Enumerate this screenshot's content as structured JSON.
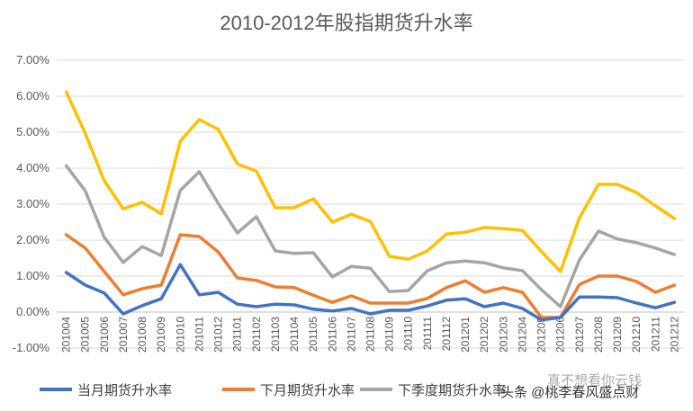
{
  "chart_data": {
    "type": "line",
    "title": "2010-2012年股指期货升水率",
    "xlabel": "",
    "ylabel": "",
    "ylim": [
      -0.01,
      0.07
    ],
    "yticks": [
      -0.01,
      0,
      0.01,
      0.02,
      0.03,
      0.04,
      0.05,
      0.06,
      0.07
    ],
    "ytick_labels": [
      "-1.00%",
      "0.00%",
      "1.00%",
      "2.00%",
      "3.00%",
      "4.00%",
      "5.00%",
      "6.00%",
      "7.00%"
    ],
    "grid": "horizontal",
    "legend_position": "bottom",
    "categories": [
      "201004",
      "201005",
      "201006",
      "201007",
      "201008",
      "201009",
      "201010",
      "201011",
      "201012",
      "201101",
      "201102",
      "201103",
      "201104",
      "201105",
      "201106",
      "201107",
      "201108",
      "201109",
      "201110",
      "201111",
      "201112",
      "201201",
      "201202",
      "201203",
      "201204",
      "201205",
      "201206",
      "201207",
      "201208",
      "201209",
      "201210",
      "201211",
      "201212"
    ],
    "series": [
      {
        "name": "当月期货升水率",
        "color": "#4472C4",
        "values": [
          0.011,
          0.0075,
          0.0053,
          -0.0005,
          0.0018,
          0.0037,
          0.0132,
          0.0048,
          0.0055,
          0.0022,
          0.0015,
          0.0022,
          0.002,
          0.0008,
          0.0003,
          0.001,
          -0.0005,
          0.0005,
          0.0005,
          0.0017,
          0.0033,
          0.0037,
          0.0015,
          0.0025,
          0.001,
          -0.0022,
          -0.0015,
          0.0042,
          0.0042,
          0.004,
          0.0025,
          0.0012,
          0.0027
        ]
      },
      {
        "name": "下月期货升水率",
        "color": "#ED7D31",
        "values": [
          0.0215,
          0.0178,
          0.0113,
          0.0048,
          0.0065,
          0.0075,
          0.0215,
          0.021,
          0.0167,
          0.0095,
          0.0088,
          0.007,
          0.0068,
          0.0047,
          0.0027,
          0.0045,
          0.0025,
          0.0025,
          0.0025,
          0.0038,
          0.0068,
          0.0087,
          0.0055,
          0.0068,
          0.0055,
          -0.0015,
          -0.0015,
          0.0077,
          0.01,
          0.01,
          0.0085,
          0.0055,
          0.0075
        ]
      },
      {
        "name": "下季度期货升水率",
        "color": "#A5A5A5",
        "values": [
          0.0407,
          0.0337,
          0.0208,
          0.0138,
          0.0182,
          0.0157,
          0.0338,
          0.039,
          0.0302,
          0.022,
          0.0265,
          0.017,
          0.0163,
          0.0165,
          0.0098,
          0.0127,
          0.0122,
          0.0057,
          0.006,
          0.0115,
          0.0137,
          0.0142,
          0.0137,
          0.0123,
          0.0115,
          0.0062,
          0.0015,
          0.0145,
          0.0225,
          0.0203,
          0.0193,
          0.0178,
          0.016
        ]
      },
      {
        "name": "",
        "color": "#FFC000",
        "values": [
          0.0612,
          0.0497,
          0.0365,
          0.0287,
          0.0305,
          0.0273,
          0.0475,
          0.0535,
          0.0508,
          0.0412,
          0.0392,
          0.029,
          0.029,
          0.0315,
          0.025,
          0.0272,
          0.0252,
          0.0155,
          0.0147,
          0.017,
          0.0217,
          0.0222,
          0.0235,
          0.0232,
          0.0227,
          0.0168,
          0.0113,
          0.0262,
          0.0355,
          0.0355,
          0.0332,
          0.0295,
          0.026
        ]
      }
    ]
  },
  "watermark": {
    "line1": "头条 @桃李春风盛点财",
    "line2": "真不想看你云钱"
  }
}
